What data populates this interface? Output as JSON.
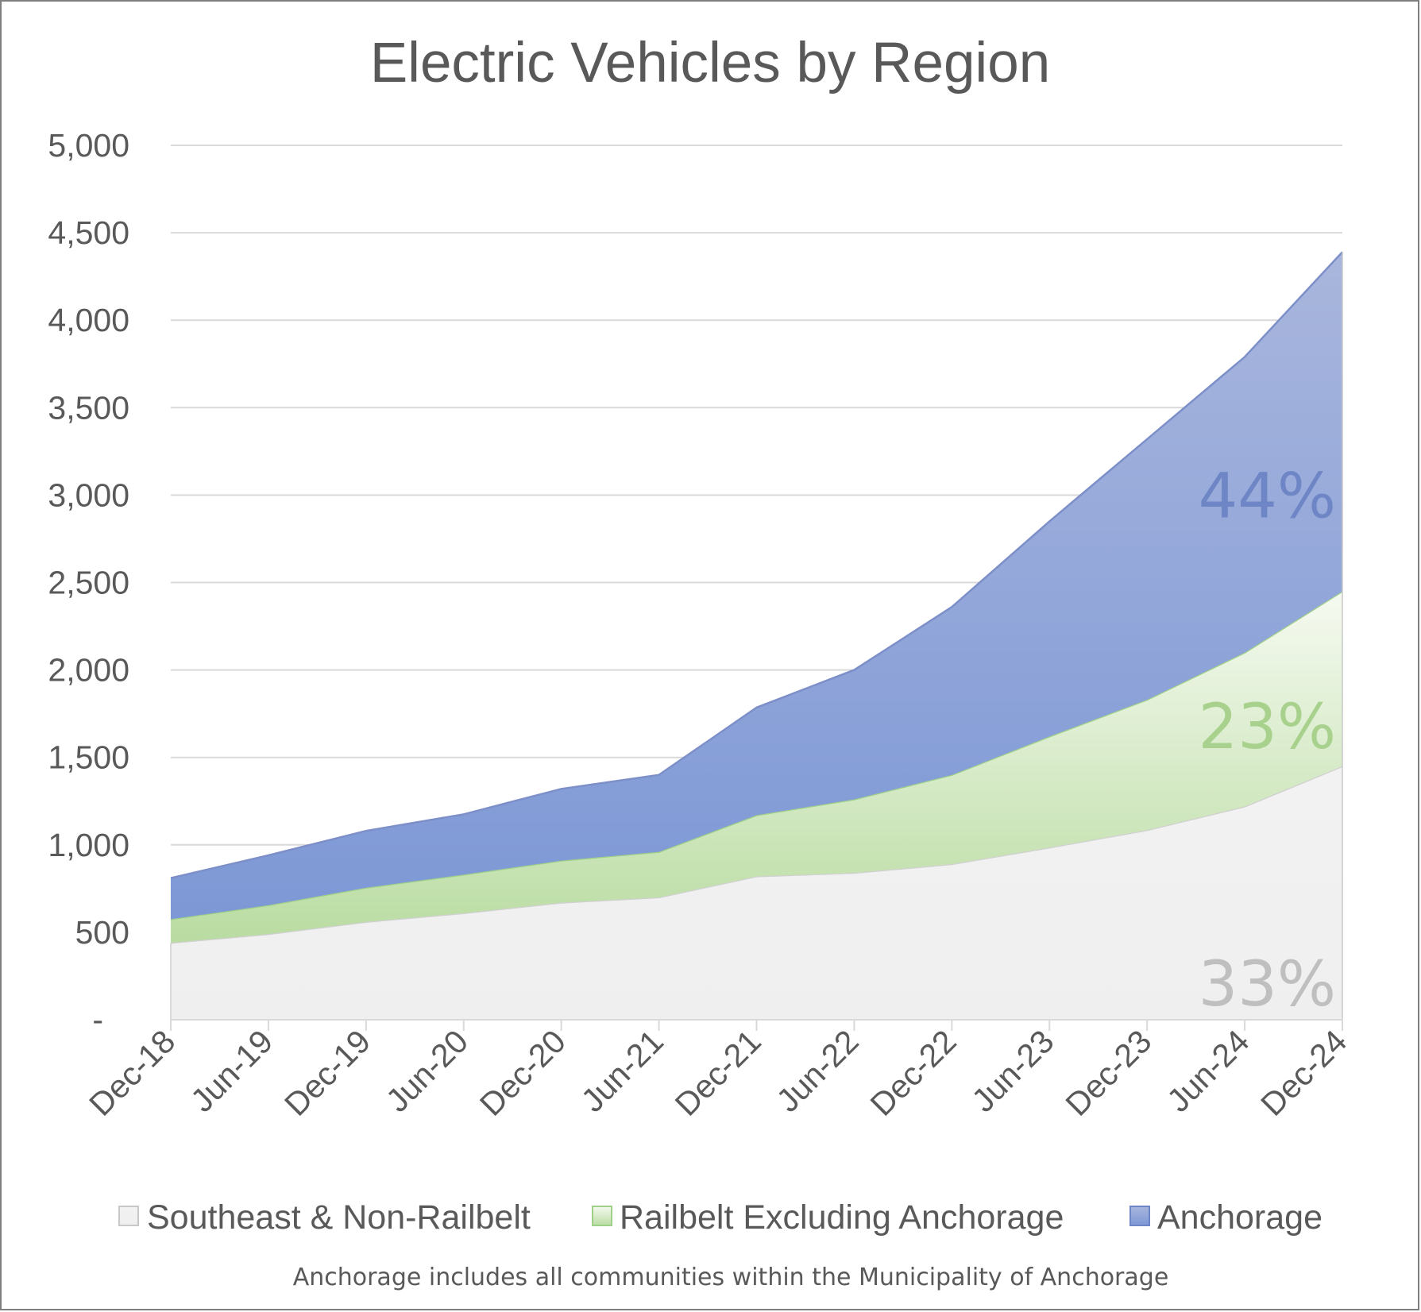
{
  "chart_data": {
    "type": "area",
    "stacked": true,
    "title": "Electric Vehicles by Region",
    "xlabel": "",
    "ylabel": "",
    "categories": [
      "Dec-18",
      "Jun-19",
      "Dec-19",
      "Jun-20",
      "Dec-20",
      "Jun-21",
      "Dec-21",
      "Jun-22",
      "Dec-22",
      "Jun-23",
      "Dec-23",
      "Jun-24",
      "Dec-24"
    ],
    "ylim": [
      0,
      5000
    ],
    "yticks": [
      0,
      500,
      1000,
      1500,
      2000,
      2500,
      3000,
      3500,
      4000,
      4500,
      5000
    ],
    "ytick_labels": [
      "-",
      "500",
      "1,000",
      "1,500",
      "2,000",
      "2,500",
      "3,000",
      "3,500",
      "4,000",
      "4,500",
      "5,000"
    ],
    "grid": true,
    "legend_position": "bottom",
    "series": [
      {
        "name": "Southeast & Non-Railbelt",
        "color": "#efefef",
        "edge_color": "#d0d0d0",
        "values": [
          440,
          490,
          560,
          610,
          670,
          700,
          820,
          840,
          890,
          985,
          1085,
          1220,
          1450
        ]
      },
      {
        "name": "Railbelt Excluding Anchorage",
        "color": "#c9e3b0",
        "edge_color": "#9fd08a",
        "values": [
          135,
          165,
          195,
          220,
          240,
          260,
          350,
          420,
          510,
          635,
          745,
          880,
          1000
        ]
      },
      {
        "name": "Anchorage",
        "color": "#8ea5d8",
        "edge_color": "#7d8fc9",
        "values": [
          235,
          285,
          325,
          345,
          410,
          440,
          615,
          740,
          960,
          1230,
          1490,
          1690,
          1940
        ]
      }
    ],
    "annotations": [
      {
        "text": "44%",
        "series": "Anchorage",
        "color": "#6f86c6"
      },
      {
        "text": "23%",
        "series": "Railbelt Excluding Anchorage",
        "color": "#a9d18e"
      },
      {
        "text": "33%",
        "series": "Southeast & Non-Railbelt",
        "color": "#bfbfbf"
      }
    ],
    "footnote": "Anchorage includes all communities within the Municipality of Anchorage"
  }
}
